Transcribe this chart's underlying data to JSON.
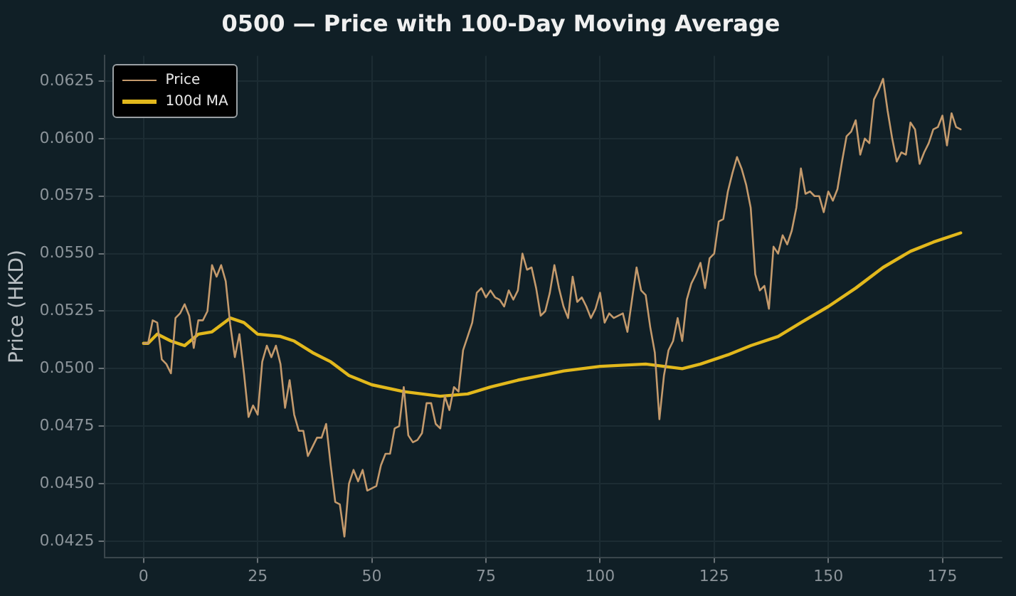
{
  "chart_data": {
    "type": "line",
    "title": "0500 — Price with 100-Day Moving Average",
    "ylabel": "Price (HKD)",
    "xlim": [
      -8.6,
      188
    ],
    "xticks": [
      0,
      25,
      50,
      75,
      100,
      125,
      150,
      175
    ],
    "ylim": [
      0.0418,
      0.0636
    ],
    "yticks": [
      0.0425,
      {
        "value": 0.045,
        "label": "0.0450"
      },
      0.0475,
      {
        "value": 0.05,
        "label": "0.0500"
      },
      0.0525,
      {
        "value": 0.055,
        "label": "0.0550"
      },
      0.0575,
      {
        "value": 0.06,
        "label": "0.0600"
      },
      0.0625
    ],
    "grid": true,
    "legend": "top left",
    "marker": "none",
    "series": [
      {
        "name": "Price",
        "color": "#c49a6c",
        "x": [
          0,
          1,
          2,
          3,
          4,
          5,
          6,
          7,
          8,
          9,
          10,
          11,
          12,
          13,
          14,
          15,
          16,
          17,
          18,
          19,
          20,
          21,
          22,
          23,
          24,
          25,
          26,
          27,
          28,
          29,
          30,
          31,
          32,
          33,
          34,
          35,
          36,
          37,
          38,
          39,
          40,
          41,
          42,
          43,
          44,
          45,
          46,
          47,
          48,
          49,
          50,
          51,
          52,
          53,
          54,
          55,
          56,
          57,
          58,
          59,
          60,
          61,
          62,
          63,
          64,
          65,
          66,
          67,
          68,
          69,
          70,
          71,
          72,
          73,
          74,
          75,
          76,
          77,
          78,
          79,
          80,
          81,
          82,
          83,
          84,
          85,
          86,
          87,
          88,
          89,
          90,
          91,
          92,
          93,
          94,
          95,
          96,
          97,
          98,
          99,
          100,
          101,
          102,
          103,
          104,
          105,
          106,
          107,
          108,
          109,
          110,
          111,
          112,
          113,
          114,
          115,
          116,
          117,
          118,
          119,
          120,
          121,
          122,
          123,
          124,
          125,
          126,
          127,
          128,
          129,
          130,
          131,
          132,
          133,
          134,
          135,
          136,
          137,
          138,
          139,
          140,
          141,
          142,
          143,
          144,
          145,
          146,
          147,
          148,
          149,
          150,
          151,
          152,
          153,
          154,
          155,
          156,
          157,
          158,
          159,
          160,
          161,
          162,
          163,
          164,
          165,
          166,
          167,
          168,
          169,
          170,
          171,
          172,
          173,
          174,
          175,
          176,
          177,
          178,
          179
        ],
        "values": [
          0.0511,
          0.0511,
          0.0521,
          0.052,
          0.0504,
          0.0502,
          0.0498,
          0.0522,
          0.0524,
          0.0528,
          0.0523,
          0.0509,
          0.0521,
          0.0521,
          0.0525,
          0.0545,
          0.054,
          0.0545,
          0.0538,
          0.0519,
          0.0505,
          0.0515,
          0.0498,
          0.0479,
          0.0484,
          0.048,
          0.0503,
          0.051,
          0.0505,
          0.051,
          0.0502,
          0.0483,
          0.0495,
          0.048,
          0.0473,
          0.0473,
          0.0462,
          0.0466,
          0.047,
          0.047,
          0.0476,
          0.0458,
          0.0442,
          0.0441,
          0.0427,
          0.045,
          0.0456,
          0.0451,
          0.0456,
          0.0447,
          0.0448,
          0.0449,
          0.0458,
          0.0463,
          0.0463,
          0.0474,
          0.0475,
          0.0492,
          0.0471,
          0.0468,
          0.0469,
          0.0472,
          0.0485,
          0.0485,
          0.0476,
          0.0474,
          0.0488,
          0.0482,
          0.0492,
          0.049,
          0.0508,
          0.0514,
          0.052,
          0.0533,
          0.0535,
          0.0531,
          0.0534,
          0.0531,
          0.053,
          0.0527,
          0.0534,
          0.053,
          0.0534,
          0.055,
          0.0543,
          0.0544,
          0.0535,
          0.0523,
          0.0525,
          0.0533,
          0.0545,
          0.0535,
          0.0527,
          0.0522,
          0.054,
          0.0529,
          0.0531,
          0.0527,
          0.0522,
          0.0526,
          0.0533,
          0.052,
          0.0524,
          0.0522,
          0.0523,
          0.0524,
          0.0516,
          0.053,
          0.0544,
          0.0534,
          0.0532,
          0.0518,
          0.0507,
          0.0478,
          0.0497,
          0.0508,
          0.0512,
          0.0522,
          0.0512,
          0.053,
          0.0537,
          0.0541,
          0.0546,
          0.0535,
          0.0548,
          0.055,
          0.0564,
          0.0565,
          0.0577,
          0.0585,
          0.0592,
          0.0587,
          0.058,
          0.057,
          0.0541,
          0.0534,
          0.0536,
          0.0526,
          0.0553,
          0.055,
          0.0558,
          0.0554,
          0.056,
          0.057,
          0.0587,
          0.0576,
          0.0577,
          0.0575,
          0.0575,
          0.0568,
          0.0577,
          0.0573,
          0.0578,
          0.059,
          0.0601,
          0.0603,
          0.0608,
          0.0593,
          0.06,
          0.0598,
          0.0617,
          0.0621,
          0.0626,
          0.0612,
          0.06,
          0.059,
          0.0594,
          0.0593,
          0.0607,
          0.0604,
          0.0589,
          0.0594,
          0.0598,
          0.0604,
          0.0605,
          0.061,
          0.0597,
          0.0611,
          0.0605,
          0.0604
        ]
      },
      {
        "name": "100d MA",
        "color": "#e2b81c",
        "x": [
          0,
          1,
          3,
          6,
          9,
          12,
          15,
          19,
          22,
          25,
          30,
          33,
          37,
          41,
          45,
          50,
          57,
          65,
          71,
          76,
          82,
          87,
          92,
          100,
          110,
          118,
          122,
          128,
          133,
          139,
          144,
          150,
          156,
          162,
          168,
          173,
          179
        ],
        "values": [
          0.0511,
          0.0511,
          0.0515,
          0.0512,
          0.051,
          0.0515,
          0.0516,
          0.0522,
          0.052,
          0.0515,
          0.0514,
          0.0512,
          0.0507,
          0.0503,
          0.0497,
          0.0493,
          0.049,
          0.0488,
          0.0489,
          0.0492,
          0.0495,
          0.0497,
          0.0499,
          0.0501,
          0.0502,
          0.05,
          0.0502,
          0.0506,
          0.051,
          0.0514,
          0.052,
          0.0527,
          0.0535,
          0.0544,
          0.0551,
          0.0555,
          0.0559
        ]
      }
    ]
  }
}
